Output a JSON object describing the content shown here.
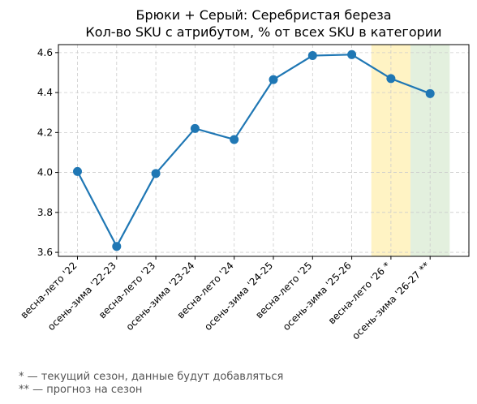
{
  "chart_data": {
    "type": "line",
    "title": "Брюки + Серый: Серебристая береза",
    "subtitle": "Кол-во SKU с атрибутом, % от всех SKU в категории",
    "xlabel": "",
    "ylabel": "",
    "categories": [
      "весна-лето '22",
      "осень-зима '22-23",
      "весна-лето '23",
      "осень-зима '23-24",
      "весна-лето '24",
      "осень-зима '24-25",
      "весна-лето '25",
      "осень-зима '25-26",
      "весна-лето '26 *",
      "осень-зима '26-27 **"
    ],
    "series": [
      {
        "values": [
          4.005,
          3.63,
          3.995,
          4.22,
          4.165,
          4.465,
          4.585,
          4.59,
          4.47,
          4.395
        ]
      }
    ],
    "ylim": [
      3.58,
      4.64
    ],
    "yticks": [
      "3.6",
      "3.8",
      "4.0",
      "4.2",
      "4.4",
      "4.6"
    ],
    "grid": true,
    "line_color": "#1f77b4",
    "highlights": [
      {
        "category": "весна-лето '26 *",
        "color": "#fff3c4"
      },
      {
        "category": "осень-зима '26-27 **",
        "color": "#e3f0de"
      }
    ]
  },
  "footnotes": {
    "current": "* — текущий сезон, данные будут добавляться",
    "forecast": "** — прогноз на сезон"
  }
}
